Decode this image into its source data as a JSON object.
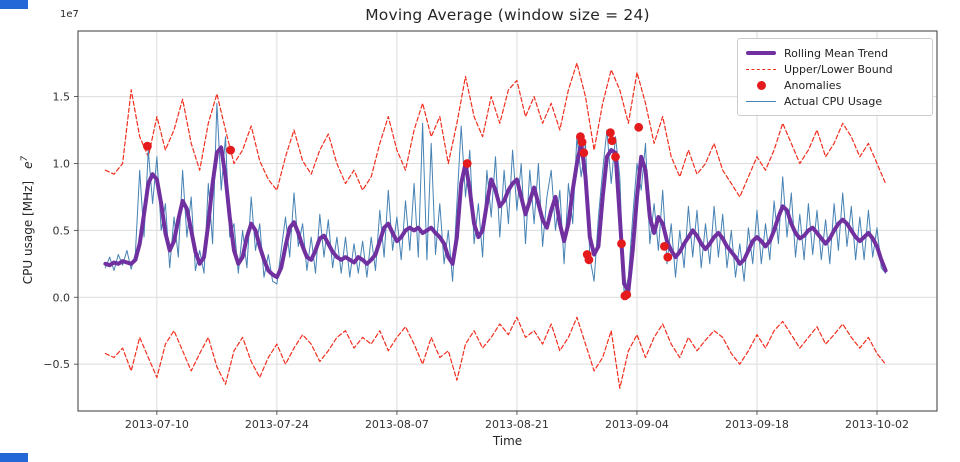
{
  "figure": {
    "title": "Moving Average (window size = 24)",
    "xlabel": "Time",
    "ylabel": "CPU usage [MHz]",
    "ylabel_math_base": "e",
    "ylabel_math_exp": "7",
    "offset_text": "1e7"
  },
  "legend": {
    "items": [
      {
        "label": "Rolling Mean Trend",
        "type": "line-thick",
        "color": "#7030a0"
      },
      {
        "label": "Upper/Lower Bound",
        "type": "line-dashed",
        "color": "#f22e1e"
      },
      {
        "label": "Anomalies",
        "type": "dot",
        "color": "#e41a1c"
      },
      {
        "label": "Actual CPU Usage",
        "type": "line-thin",
        "color": "#4682b4"
      }
    ]
  },
  "chart_data": {
    "type": "line",
    "title": "Moving Average (window size = 24)",
    "xlabel": "Time",
    "ylabel": "CPU usage [MHz] (x 1e7)",
    "window_size": 24,
    "x_unit": "days since 2013-07-04",
    "xlim": [
      -3.2,
      97
    ],
    "ylim": [
      -0.85,
      1.99
    ],
    "x_tick_positions": [
      6,
      20,
      34,
      48,
      62,
      76,
      90
    ],
    "x_tick_labels": [
      "2013-07-10",
      "2013-07-24",
      "2013-08-07",
      "2013-08-21",
      "2013-09-04",
      "2013-09-18",
      "2013-10-02"
    ],
    "y_ticks": [
      1.5,
      1.0,
      0.5,
      0.0,
      -0.5
    ],
    "y_tick_labels": [
      "1.5",
      "1.0",
      "0.5",
      "0.0",
      "−0.5"
    ],
    "grid": true,
    "legend_position": "upper right",
    "style": {
      "grid_color": "#dcdcdc",
      "axis_color": "#3a3a3a",
      "background": "#ffffff",
      "title_color": "#262626",
      "tick_label_color": "#333333"
    },
    "series": [
      {
        "id": "upper-bound",
        "name": "Upper Bound",
        "color": "#f22e1e",
        "width": 1.2,
        "dash": true,
        "x_step": 1,
        "values": [
          0.95,
          0.92,
          1.0,
          1.55,
          1.2,
          1.05,
          1.35,
          1.1,
          1.25,
          1.48,
          1.15,
          0.95,
          1.3,
          1.52,
          1.25,
          1.0,
          1.1,
          1.28,
          1.02,
          0.88,
          0.8,
          1.05,
          1.25,
          1.02,
          0.92,
          1.1,
          1.22,
          1.0,
          0.85,
          0.95,
          0.8,
          0.9,
          1.15,
          1.35,
          1.1,
          0.95,
          1.25,
          1.45,
          1.2,
          1.35,
          1.0,
          1.3,
          1.65,
          1.35,
          1.2,
          1.5,
          1.3,
          1.55,
          1.62,
          1.35,
          1.5,
          1.3,
          1.45,
          1.25,
          1.55,
          1.75,
          1.5,
          1.1,
          1.45,
          1.7,
          1.55,
          1.3,
          1.68,
          1.45,
          1.15,
          1.35,
          1.05,
          0.9,
          1.1,
          0.92,
          1.0,
          1.15,
          0.95,
          0.85,
          0.75,
          0.9,
          1.05,
          0.95,
          1.1,
          1.3,
          1.15,
          1.0,
          1.1,
          1.25,
          1.05,
          1.15,
          1.3,
          1.2,
          1.05,
          1.15,
          1.0,
          0.85
        ]
      },
      {
        "id": "lower-bound",
        "name": "Lower Bound",
        "color": "#f22e1e",
        "width": 1.2,
        "dash": true,
        "x_step": 1,
        "values": [
          -0.42,
          -0.45,
          -0.38,
          -0.55,
          -0.3,
          -0.45,
          -0.6,
          -0.35,
          -0.25,
          -0.4,
          -0.55,
          -0.42,
          -0.3,
          -0.52,
          -0.65,
          -0.4,
          -0.3,
          -0.48,
          -0.6,
          -0.45,
          -0.35,
          -0.5,
          -0.38,
          -0.28,
          -0.35,
          -0.48,
          -0.4,
          -0.3,
          -0.25,
          -0.38,
          -0.3,
          -0.35,
          -0.25,
          -0.4,
          -0.3,
          -0.22,
          -0.35,
          -0.5,
          -0.3,
          -0.45,
          -0.4,
          -0.62,
          -0.35,
          -0.25,
          -0.38,
          -0.3,
          -0.2,
          -0.28,
          -0.15,
          -0.3,
          -0.25,
          -0.35,
          -0.2,
          -0.4,
          -0.3,
          -0.15,
          -0.35,
          -0.55,
          -0.45,
          -0.25,
          -0.68,
          -0.4,
          -0.28,
          -0.45,
          -0.3,
          -0.2,
          -0.35,
          -0.45,
          -0.3,
          -0.4,
          -0.32,
          -0.25,
          -0.3,
          -0.42,
          -0.5,
          -0.4,
          -0.28,
          -0.38,
          -0.25,
          -0.18,
          -0.28,
          -0.38,
          -0.3,
          -0.22,
          -0.35,
          -0.28,
          -0.2,
          -0.3,
          -0.38,
          -0.3,
          -0.42,
          -0.5
        ]
      },
      {
        "id": "actual",
        "name": "Actual CPU Usage",
        "color": "#4682b4",
        "width": 1,
        "dash": false,
        "x_step": 0.5,
        "values": [
          0.22,
          0.3,
          0.2,
          0.32,
          0.24,
          0.35,
          0.21,
          0.33,
          0.95,
          0.45,
          1.1,
          0.7,
          1.05,
          0.5,
          0.7,
          0.22,
          0.6,
          0.3,
          0.95,
          0.45,
          0.75,
          0.2,
          0.35,
          0.18,
          0.85,
          0.4,
          1.45,
          0.8,
          1.2,
          0.45,
          0.55,
          0.18,
          0.5,
          0.22,
          0.75,
          0.35,
          0.55,
          0.15,
          0.32,
          0.12,
          0.1,
          0.35,
          0.6,
          0.3,
          0.78,
          0.38,
          0.55,
          0.2,
          0.45,
          0.18,
          0.62,
          0.3,
          0.58,
          0.22,
          0.45,
          0.18,
          0.45,
          0.15,
          0.4,
          0.18,
          0.42,
          0.15,
          0.45,
          0.2,
          0.65,
          0.3,
          0.8,
          0.35,
          0.6,
          0.28,
          0.72,
          0.35,
          0.85,
          0.3,
          1.3,
          0.28,
          1.15,
          0.32,
          0.7,
          0.25,
          0.5,
          0.12,
          0.7,
          1.28,
          0.75,
          1.1,
          0.4,
          0.7,
          0.3,
          0.95,
          0.6,
          1.05,
          0.45,
          0.95,
          0.55,
          1.1,
          0.65,
          1.0,
          0.4,
          0.95,
          0.55,
          1.0,
          0.38,
          0.75,
          0.95,
          0.5,
          0.8,
          0.25,
          0.85,
          0.55,
          1.2,
          0.9,
          1.15,
          0.3,
          0.12,
          0.6,
          0.95,
          1.25,
          0.85,
          1.2,
          0.9,
          0.02,
          0.15,
          0.6,
          1.0,
          0.8,
          1.15,
          0.4,
          0.7,
          0.35,
          0.8,
          0.25,
          0.55,
          0.15,
          0.5,
          0.22,
          0.68,
          0.3,
          0.65,
          0.22,
          0.55,
          0.25,
          0.68,
          0.3,
          0.62,
          0.22,
          0.5,
          0.15,
          0.4,
          0.12,
          0.52,
          0.25,
          0.65,
          0.25,
          0.55,
          0.28,
          0.72,
          0.4,
          0.9,
          0.45,
          0.78,
          0.3,
          0.62,
          0.28,
          0.7,
          0.32,
          0.65,
          0.28,
          0.58,
          0.25,
          0.7,
          0.35,
          0.78,
          0.38,
          0.68,
          0.28,
          0.6,
          0.28,
          0.65,
          0.3,
          0.52,
          0.22,
          0.18
        ]
      },
      {
        "id": "rolling-mean",
        "name": "Rolling Mean Trend",
        "color": "#7030a0",
        "width": 4,
        "dash": false,
        "x_step": 0.5,
        "values": [
          0.25,
          0.24,
          0.26,
          0.25,
          0.27,
          0.26,
          0.25,
          0.28,
          0.4,
          0.62,
          0.85,
          0.92,
          0.88,
          0.7,
          0.48,
          0.35,
          0.42,
          0.58,
          0.72,
          0.66,
          0.5,
          0.34,
          0.25,
          0.3,
          0.55,
          0.85,
          1.08,
          1.12,
          0.9,
          0.6,
          0.35,
          0.25,
          0.3,
          0.45,
          0.55,
          0.5,
          0.38,
          0.28,
          0.2,
          0.17,
          0.15,
          0.22,
          0.38,
          0.52,
          0.56,
          0.48,
          0.38,
          0.3,
          0.28,
          0.35,
          0.44,
          0.46,
          0.4,
          0.34,
          0.3,
          0.28,
          0.3,
          0.28,
          0.26,
          0.3,
          0.28,
          0.25,
          0.28,
          0.32,
          0.42,
          0.52,
          0.55,
          0.48,
          0.42,
          0.45,
          0.5,
          0.52,
          0.5,
          0.52,
          0.48,
          0.5,
          0.52,
          0.48,
          0.45,
          0.4,
          0.3,
          0.25,
          0.45,
          0.85,
          1.0,
          0.8,
          0.55,
          0.45,
          0.5,
          0.7,
          0.88,
          0.8,
          0.68,
          0.72,
          0.8,
          0.85,
          0.88,
          0.75,
          0.62,
          0.72,
          0.82,
          0.7,
          0.58,
          0.52,
          0.65,
          0.75,
          0.55,
          0.42,
          0.55,
          0.8,
          1.0,
          1.15,
          0.9,
          0.45,
          0.32,
          0.38,
          0.75,
          1.05,
          1.1,
          1.08,
          0.6,
          0.1,
          0.05,
          0.35,
          0.75,
          1.05,
          0.95,
          0.6,
          0.48,
          0.6,
          0.55,
          0.42,
          0.35,
          0.3,
          0.34,
          0.4,
          0.45,
          0.5,
          0.46,
          0.4,
          0.36,
          0.4,
          0.45,
          0.48,
          0.44,
          0.38,
          0.34,
          0.3,
          0.25,
          0.28,
          0.35,
          0.42,
          0.45,
          0.42,
          0.38,
          0.42,
          0.5,
          0.6,
          0.68,
          0.65,
          0.55,
          0.48,
          0.44,
          0.46,
          0.5,
          0.52,
          0.48,
          0.44,
          0.4,
          0.44,
          0.5,
          0.55,
          0.58,
          0.55,
          0.5,
          0.45,
          0.42,
          0.45,
          0.48,
          0.44,
          0.38,
          0.28,
          0.2
        ]
      }
    ],
    "anomalies": {
      "id": "anomalies",
      "name": "Anomalies",
      "color": "#e41a1c",
      "radius": 4.4,
      "points": [
        [
          4.9,
          1.13
        ],
        [
          14.6,
          1.1
        ],
        [
          42.2,
          1.0
        ],
        [
          55.4,
          1.2
        ],
        [
          55.6,
          1.16
        ],
        [
          55.8,
          1.08
        ],
        [
          56.2,
          0.32
        ],
        [
          56.4,
          0.28
        ],
        [
          58.9,
          1.23
        ],
        [
          59.1,
          1.17
        ],
        [
          59.5,
          1.05
        ],
        [
          60.2,
          0.4
        ],
        [
          60.6,
          0.01
        ],
        [
          60.8,
          0.02
        ],
        [
          62.2,
          1.27
        ],
        [
          65.2,
          0.38
        ],
        [
          65.6,
          0.3
        ]
      ]
    }
  }
}
